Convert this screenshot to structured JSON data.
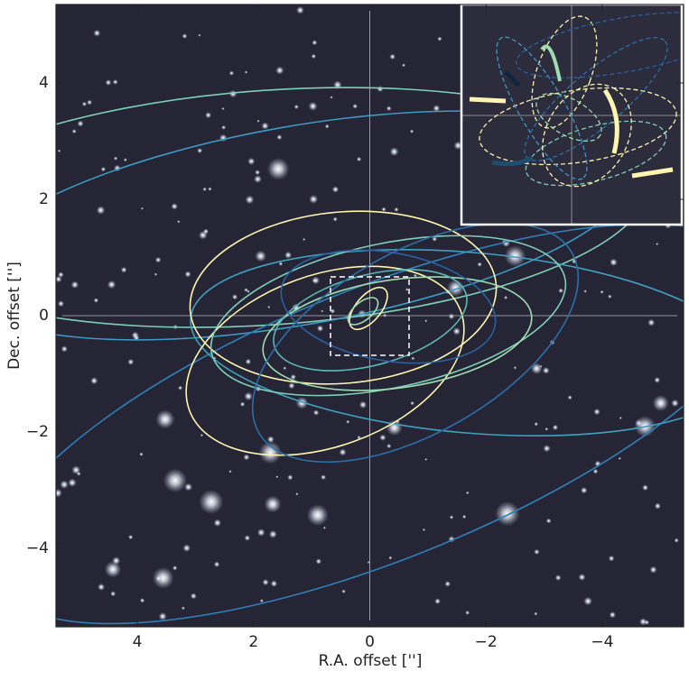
{
  "chart_data": {
    "type": "image",
    "x_label": "R.A. offset ['']",
    "y_label": "Dec. offset ['']",
    "xlim": [
      5.4,
      -5.4
    ],
    "ylim": [
      -5.35,
      5.35
    ],
    "xticks": [
      4,
      2,
      0,
      {
        "value": -2,
        "label": "−2"
      },
      {
        "value": -4,
        "label": "−4"
      }
    ],
    "yticks": [
      {
        "value": -4,
        "label": "−4"
      },
      {
        "value": -2,
        "label": "−2"
      },
      0,
      2,
      4
    ],
    "zero_lines": true
  }
}
